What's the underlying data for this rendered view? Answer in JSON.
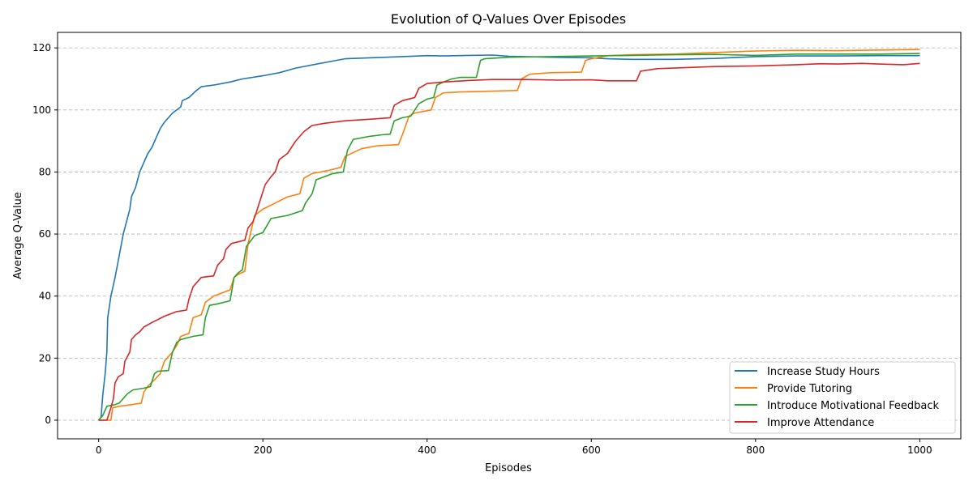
{
  "chart_data": {
    "type": "line",
    "title": "Evolution of Q-Values Over Episodes",
    "xlabel": "Episodes",
    "ylabel": "Average Q-Value",
    "xlim": [
      -50,
      1050
    ],
    "ylim": [
      -6,
      125
    ],
    "xticks": [
      0,
      200,
      400,
      600,
      800,
      1000
    ],
    "yticks": [
      0,
      20,
      40,
      60,
      80,
      100,
      120
    ],
    "grid": "horizontal dashed",
    "legend_position": "lower-right",
    "series": [
      {
        "name": "Increase Study Hours",
        "color": "#1f77b4",
        "points": [
          [
            0,
            0
          ],
          [
            3,
            1
          ],
          [
            5,
            8
          ],
          [
            8,
            15
          ],
          [
            10,
            22
          ],
          [
            11,
            33
          ],
          [
            15,
            40
          ],
          [
            20,
            46
          ],
          [
            25,
            53
          ],
          [
            30,
            60
          ],
          [
            38,
            68
          ],
          [
            40,
            72
          ],
          [
            45,
            75
          ],
          [
            50,
            80
          ],
          [
            55,
            83
          ],
          [
            60,
            86
          ],
          [
            65,
            88
          ],
          [
            70,
            91
          ],
          [
            75,
            94
          ],
          [
            80,
            96
          ],
          [
            90,
            99
          ],
          [
            100,
            101
          ],
          [
            102,
            103
          ],
          [
            110,
            104
          ],
          [
            118,
            106
          ],
          [
            125,
            107.5
          ],
          [
            140,
            108
          ],
          [
            160,
            109
          ],
          [
            175,
            110
          ],
          [
            200,
            111
          ],
          [
            220,
            112
          ],
          [
            240,
            113.5
          ],
          [
            260,
            114.5
          ],
          [
            280,
            115.5
          ],
          [
            300,
            116.5
          ],
          [
            350,
            117
          ],
          [
            400,
            117.5
          ],
          [
            420,
            117.4
          ],
          [
            450,
            117.6
          ],
          [
            480,
            117.7
          ],
          [
            500,
            117.3
          ],
          [
            550,
            117
          ],
          [
            600,
            116.8
          ],
          [
            620,
            116.5
          ],
          [
            650,
            116.3
          ],
          [
            700,
            116.3
          ],
          [
            750,
            116.6
          ],
          [
            800,
            117.2
          ],
          [
            850,
            117.4
          ],
          [
            900,
            117.4
          ],
          [
            950,
            117.5
          ],
          [
            1000,
            117.5
          ]
        ]
      },
      {
        "name": "Provide Tutoring",
        "color": "#ff7f0e",
        "points": [
          [
            0,
            0
          ],
          [
            15,
            0
          ],
          [
            17,
            4
          ],
          [
            25,
            4.5
          ],
          [
            40,
            5
          ],
          [
            52,
            5.5
          ],
          [
            55,
            9
          ],
          [
            60,
            11
          ],
          [
            68,
            13
          ],
          [
            75,
            15
          ],
          [
            80,
            19
          ],
          [
            90,
            22
          ],
          [
            95,
            24
          ],
          [
            100,
            27
          ],
          [
            110,
            28
          ],
          [
            115,
            33
          ],
          [
            125,
            34
          ],
          [
            130,
            38
          ],
          [
            140,
            40
          ],
          [
            150,
            41
          ],
          [
            160,
            42
          ],
          [
            165,
            46
          ],
          [
            170,
            47
          ],
          [
            178,
            48
          ],
          [
            182,
            57
          ],
          [
            190,
            66
          ],
          [
            200,
            68
          ],
          [
            215,
            70
          ],
          [
            230,
            72
          ],
          [
            245,
            73
          ],
          [
            250,
            78
          ],
          [
            260,
            79.5
          ],
          [
            280,
            80.5
          ],
          [
            295,
            81.5
          ],
          [
            300,
            85
          ],
          [
            320,
            87.5
          ],
          [
            340,
            88.5
          ],
          [
            365,
            88.8
          ],
          [
            370,
            92
          ],
          [
            378,
            98
          ],
          [
            385,
            99
          ],
          [
            395,
            99.5
          ],
          [
            405,
            100
          ],
          [
            410,
            104
          ],
          [
            420,
            105.5
          ],
          [
            440,
            105.8
          ],
          [
            470,
            106
          ],
          [
            510,
            106.3
          ],
          [
            515,
            110
          ],
          [
            525,
            111.5
          ],
          [
            550,
            112
          ],
          [
            588,
            112.2
          ],
          [
            593,
            116
          ],
          [
            600,
            116.5
          ],
          [
            620,
            117.5
          ],
          [
            650,
            117.8
          ],
          [
            700,
            118
          ],
          [
            750,
            118.5
          ],
          [
            800,
            119
          ],
          [
            850,
            119.2
          ],
          [
            900,
            119.1
          ],
          [
            950,
            119.3
          ],
          [
            1000,
            119.5
          ]
        ]
      },
      {
        "name": "Introduce Motivational Feedback",
        "color": "#2ca02c",
        "points": [
          [
            0,
            0
          ],
          [
            5,
            1.5
          ],
          [
            10,
            4.5
          ],
          [
            20,
            5
          ],
          [
            25,
            5.5
          ],
          [
            35,
            8.5
          ],
          [
            42,
            9.8
          ],
          [
            55,
            10.3
          ],
          [
            63,
            10.8
          ],
          [
            68,
            15
          ],
          [
            72,
            15.8
          ],
          [
            85,
            16
          ],
          [
            90,
            22
          ],
          [
            95,
            25
          ],
          [
            100,
            26
          ],
          [
            115,
            27
          ],
          [
            127,
            27.5
          ],
          [
            130,
            33
          ],
          [
            135,
            37
          ],
          [
            145,
            37.5
          ],
          [
            160,
            38.5
          ],
          [
            165,
            46
          ],
          [
            170,
            47.5
          ],
          [
            175,
            48.5
          ],
          [
            180,
            56
          ],
          [
            190,
            59.5
          ],
          [
            200,
            60.5
          ],
          [
            210,
            65
          ],
          [
            230,
            66
          ],
          [
            248,
            67.5
          ],
          [
            252,
            70
          ],
          [
            260,
            73
          ],
          [
            265,
            77.5
          ],
          [
            275,
            78.5
          ],
          [
            285,
            79.5
          ],
          [
            298,
            80
          ],
          [
            303,
            87
          ],
          [
            310,
            90.5
          ],
          [
            330,
            91.5
          ],
          [
            345,
            92
          ],
          [
            355,
            92.2
          ],
          [
            360,
            96.5
          ],
          [
            370,
            97.5
          ],
          [
            380,
            98
          ],
          [
            390,
            102
          ],
          [
            400,
            103.5
          ],
          [
            408,
            104
          ],
          [
            412,
            108
          ],
          [
            420,
            109
          ],
          [
            430,
            110
          ],
          [
            440,
            110.5
          ],
          [
            460,
            110.5
          ],
          [
            465,
            116
          ],
          [
            470,
            116.5
          ],
          [
            500,
            117
          ],
          [
            550,
            117.2
          ],
          [
            600,
            117.4
          ],
          [
            650,
            117.6
          ],
          [
            700,
            117.8
          ],
          [
            750,
            117.9
          ],
          [
            800,
            117.6
          ],
          [
            850,
            118
          ],
          [
            900,
            118
          ],
          [
            950,
            118
          ],
          [
            1000,
            118.2
          ]
        ]
      },
      {
        "name": "Improve Attendance",
        "color": "#d62728",
        "points": [
          [
            0,
            0
          ],
          [
            10,
            0
          ],
          [
            15,
            4
          ],
          [
            18,
            7
          ],
          [
            20,
            12
          ],
          [
            24,
            14
          ],
          [
            30,
            15
          ],
          [
            32,
            19
          ],
          [
            38,
            22
          ],
          [
            40,
            26
          ],
          [
            45,
            27.5
          ],
          [
            50,
            28.5
          ],
          [
            55,
            30
          ],
          [
            65,
            31.5
          ],
          [
            80,
            33.5
          ],
          [
            95,
            35
          ],
          [
            107,
            35.5
          ],
          [
            110,
            39
          ],
          [
            115,
            43
          ],
          [
            125,
            46
          ],
          [
            140,
            46.5
          ],
          [
            145,
            50
          ],
          [
            152,
            52
          ],
          [
            155,
            55
          ],
          [
            162,
            57
          ],
          [
            170,
            57.5
          ],
          [
            178,
            58
          ],
          [
            182,
            62
          ],
          [
            188,
            64
          ],
          [
            192,
            67
          ],
          [
            198,
            72
          ],
          [
            203,
            76
          ],
          [
            210,
            78.5
          ],
          [
            215,
            80
          ],
          [
            220,
            84
          ],
          [
            230,
            86
          ],
          [
            240,
            90
          ],
          [
            250,
            93
          ],
          [
            260,
            95
          ],
          [
            275,
            95.7
          ],
          [
            300,
            96.5
          ],
          [
            330,
            97
          ],
          [
            355,
            97.5
          ],
          [
            360,
            101.5
          ],
          [
            370,
            103
          ],
          [
            385,
            104
          ],
          [
            390,
            107
          ],
          [
            400,
            108.5
          ],
          [
            420,
            109
          ],
          [
            450,
            109.5
          ],
          [
            480,
            109.8
          ],
          [
            520,
            109.8
          ],
          [
            560,
            109.6
          ],
          [
            600,
            109.7
          ],
          [
            620,
            109.4
          ],
          [
            655,
            109.4
          ],
          [
            660,
            112.5
          ],
          [
            680,
            113.3
          ],
          [
            700,
            113.5
          ],
          [
            750,
            114
          ],
          [
            800,
            114.2
          ],
          [
            850,
            114.6
          ],
          [
            880,
            114.9
          ],
          [
            900,
            114.8
          ],
          [
            930,
            115
          ],
          [
            950,
            114.8
          ],
          [
            980,
            114.6
          ],
          [
            1000,
            115
          ]
        ]
      }
    ]
  }
}
